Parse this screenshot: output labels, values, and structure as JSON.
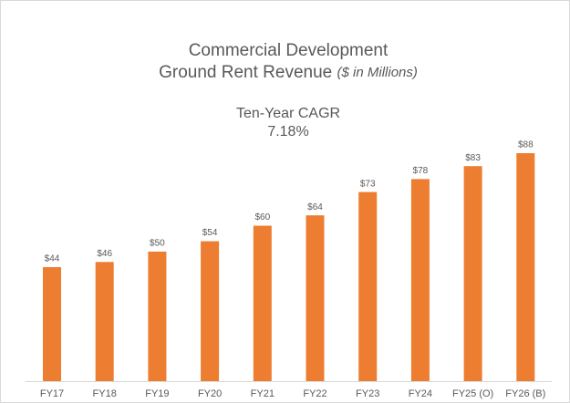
{
  "chart_data": {
    "type": "bar",
    "title_lines": [
      "Commercial Development",
      "Ground Rent Revenue"
    ],
    "title_note": "($ in Millions)",
    "annotation": [
      "Ten-Year CAGR",
      "7.18%"
    ],
    "categories": [
      "FY17",
      "FY18",
      "FY19",
      "FY20",
      "FY21",
      "FY22",
      "FY23",
      "FY24",
      "FY25 (O)",
      "FY26 (B)"
    ],
    "values": [
      44,
      46,
      50,
      54,
      60,
      64,
      73,
      78,
      83,
      88
    ],
    "value_labels": [
      "$44",
      "$46",
      "$50",
      "$54",
      "$60",
      "$64",
      "$73",
      "$78",
      "$83",
      "$88"
    ],
    "color": "#ed7d31"
  }
}
